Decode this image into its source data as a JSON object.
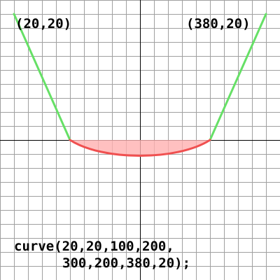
{
  "labels": {
    "start_point": "(20,20)",
    "end_point": "(380,20)"
  },
  "code": {
    "line1": "curve(20,20,100,200,",
    "line2": "300,200,380,20);"
  },
  "curve": {
    "control_point_1": [
      20,
      20
    ],
    "anchor_1": [
      100,
      200
    ],
    "anchor_2": [
      300,
      200
    ],
    "control_point_2": [
      380,
      20
    ]
  },
  "grid": {
    "spacing": 20,
    "axis": 200
  },
  "colors": {
    "background": "#ffffff",
    "grid_line": "#a0a0a0",
    "axis_line": "#000000",
    "guide_line": "#66e066",
    "curve_stroke": "#f05050",
    "curve_fill": "#ffb0b0",
    "text": "#000000"
  }
}
